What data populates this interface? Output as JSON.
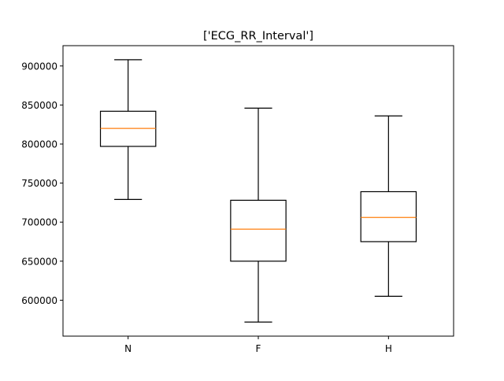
{
  "chart_data": {
    "type": "box",
    "title": "['ECG_RR_Interval']",
    "xlabel": "",
    "ylabel": "",
    "categories": [
      "N",
      "F",
      "H"
    ],
    "ylim": [
      554000,
      926000
    ],
    "yticks": [
      {
        "value": 600000,
        "label": "600000"
      },
      {
        "value": 650000,
        "label": "650000"
      },
      {
        "value": 700000,
        "label": "700000"
      },
      {
        "value": 750000,
        "label": "750000"
      },
      {
        "value": 800000,
        "label": "800000"
      },
      {
        "value": 850000,
        "label": "850000"
      },
      {
        "value": 900000,
        "label": "900000"
      }
    ],
    "boxes": [
      {
        "category": "N",
        "whisker_low": 729000,
        "q1": 797000,
        "median": 820000,
        "q3": 842000,
        "whisker_high": 908000
      },
      {
        "category": "F",
        "whisker_low": 572000,
        "q1": 650000,
        "median": 691000,
        "q3": 728000,
        "whisker_high": 846000
      },
      {
        "category": "H",
        "whisker_low": 605000,
        "q1": 675000,
        "median": 706000,
        "q3": 739000,
        "whisker_high": 836000
      }
    ],
    "grid": false,
    "legend": "none",
    "colors": {
      "box": "#000000",
      "median": "#ff7f0e",
      "axes": "#000000",
      "background": "#ffffff"
    }
  }
}
